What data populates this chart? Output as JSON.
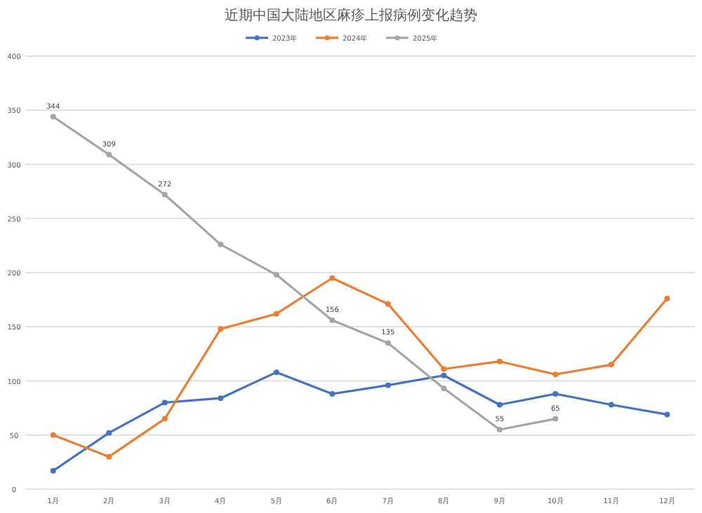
{
  "chart_data": {
    "type": "line",
    "title": "近期中国大陆地区麻疹上报病例变化趋势",
    "categories": [
      "1月",
      "2月",
      "3月",
      "4月",
      "5月",
      "6月",
      "7月",
      "8月",
      "9月",
      "10月",
      "11月",
      "12月"
    ],
    "series": [
      {
        "name": "2023年",
        "color": "#4472c4",
        "values": [
          17,
          52,
          80,
          84,
          108,
          88,
          96,
          105,
          78,
          88,
          78,
          69
        ]
      },
      {
        "name": "2024年",
        "color": "#ed7d31",
        "values": [
          50,
          30,
          65,
          148,
          162,
          195,
          171,
          111,
          118,
          106,
          115,
          176
        ]
      },
      {
        "name": "2025年",
        "color": "#a5a5a5",
        "values": [
          344,
          309,
          272,
          226,
          198,
          156,
          135,
          93,
          55,
          65,
          null,
          null
        ],
        "value_labels": [
          "344",
          "309",
          "272",
          null,
          null,
          "156",
          "135",
          null,
          "55",
          "65",
          null,
          null
        ]
      }
    ],
    "ylim": [
      0,
      400
    ],
    "yticks": [
      0,
      50,
      100,
      150,
      200,
      250,
      300,
      350,
      400
    ],
    "grid": "y",
    "legend": "top",
    "marker": "circle",
    "line_style": "solid"
  }
}
